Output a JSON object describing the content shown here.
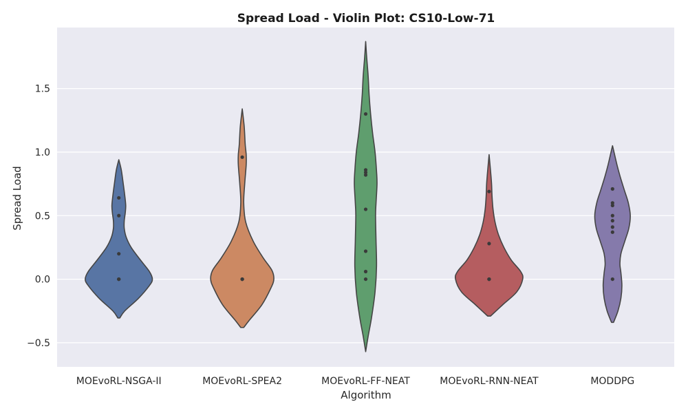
{
  "chart_data": {
    "type": "violin",
    "title": "Spread Load - Violin Plot: CS10-Low-71",
    "xlabel": "Algorithm",
    "ylabel": "Spread Load",
    "ylim": [
      -0.69,
      1.98
    ],
    "yticks": [
      -0.5,
      0.0,
      0.5,
      1.0,
      1.5
    ],
    "ytick_labels": [
      "−0.5",
      "0.0",
      "0.5",
      "1.0",
      "1.5"
    ],
    "grid": true,
    "background": "#eaeaf2",
    "categories": [
      "MOEvoRL-NSGA-II",
      "MOEvoRL-SPEA2",
      "MOEvoRL-FF-NEAT",
      "MOEvoRL-RNN-NEAT",
      "MODDPG"
    ],
    "colors": [
      "#5875a4",
      "#cc8963",
      "#5f9e6e",
      "#b55d60",
      "#857aab"
    ],
    "series": [
      {
        "points": [
          0.0,
          0.0,
          0.0,
          0.2,
          0.5,
          0.64
        ],
        "profile": [
          [
            -0.305,
            0.02
          ],
          [
            -0.25,
            0.12
          ],
          [
            -0.15,
            0.4
          ],
          [
            -0.05,
            0.62
          ],
          [
            0.0,
            0.68
          ],
          [
            0.06,
            0.62
          ],
          [
            0.15,
            0.44
          ],
          [
            0.25,
            0.25
          ],
          [
            0.33,
            0.15
          ],
          [
            0.4,
            0.11
          ],
          [
            0.46,
            0.11
          ],
          [
            0.52,
            0.13
          ],
          [
            0.58,
            0.14
          ],
          [
            0.66,
            0.12
          ],
          [
            0.75,
            0.09
          ],
          [
            0.86,
            0.05
          ],
          [
            0.94,
            0.0
          ]
        ]
      },
      {
        "points": [
          0.0,
          0.0,
          0.0,
          0.96
        ],
        "profile": [
          [
            -0.38,
            0.03
          ],
          [
            -0.32,
            0.15
          ],
          [
            -0.2,
            0.4
          ],
          [
            -0.07,
            0.58
          ],
          [
            0.0,
            0.64
          ],
          [
            0.07,
            0.6
          ],
          [
            0.17,
            0.42
          ],
          [
            0.3,
            0.22
          ],
          [
            0.45,
            0.07
          ],
          [
            0.6,
            0.03
          ],
          [
            0.75,
            0.05
          ],
          [
            0.9,
            0.08
          ],
          [
            0.98,
            0.08
          ],
          [
            1.06,
            0.06
          ],
          [
            1.2,
            0.04
          ],
          [
            1.34,
            0.0
          ]
        ]
      },
      {
        "points": [
          0.0,
          0.06,
          0.22,
          0.55,
          0.82,
          0.84,
          0.86,
          1.3
        ],
        "profile": [
          [
            -0.57,
            0.0
          ],
          [
            -0.45,
            0.05
          ],
          [
            -0.3,
            0.12
          ],
          [
            -0.1,
            0.19
          ],
          [
            0.1,
            0.22
          ],
          [
            0.3,
            0.21
          ],
          [
            0.5,
            0.2
          ],
          [
            0.6,
            0.21
          ],
          [
            0.75,
            0.23
          ],
          [
            0.85,
            0.22
          ],
          [
            1.0,
            0.19
          ],
          [
            1.15,
            0.14
          ],
          [
            1.3,
            0.1
          ],
          [
            1.45,
            0.07
          ],
          [
            1.6,
            0.05
          ],
          [
            1.75,
            0.02
          ],
          [
            1.87,
            0.0
          ]
        ]
      },
      {
        "points": [
          0.0,
          0.0,
          0.0,
          0.28,
          0.69
        ],
        "profile": [
          [
            -0.29,
            0.03
          ],
          [
            -0.2,
            0.28
          ],
          [
            -0.1,
            0.56
          ],
          [
            0.0,
            0.68
          ],
          [
            0.06,
            0.64
          ],
          [
            0.15,
            0.45
          ],
          [
            0.25,
            0.3
          ],
          [
            0.35,
            0.19
          ],
          [
            0.45,
            0.12
          ],
          [
            0.55,
            0.08
          ],
          [
            0.65,
            0.06
          ],
          [
            0.75,
            0.05
          ],
          [
            0.85,
            0.03
          ],
          [
            0.98,
            0.0
          ]
        ]
      },
      {
        "points": [
          0.0,
          0.37,
          0.41,
          0.46,
          0.5,
          0.58,
          0.6,
          0.71
        ],
        "profile": [
          [
            -0.34,
            0.02
          ],
          [
            -0.25,
            0.11
          ],
          [
            -0.15,
            0.17
          ],
          [
            -0.05,
            0.19
          ],
          [
            0.05,
            0.17
          ],
          [
            0.12,
            0.15
          ],
          [
            0.2,
            0.17
          ],
          [
            0.3,
            0.25
          ],
          [
            0.4,
            0.33
          ],
          [
            0.5,
            0.36
          ],
          [
            0.6,
            0.32
          ],
          [
            0.7,
            0.24
          ],
          [
            0.8,
            0.16
          ],
          [
            0.9,
            0.09
          ],
          [
            1.0,
            0.03
          ],
          [
            1.05,
            0.0
          ]
        ]
      }
    ]
  }
}
